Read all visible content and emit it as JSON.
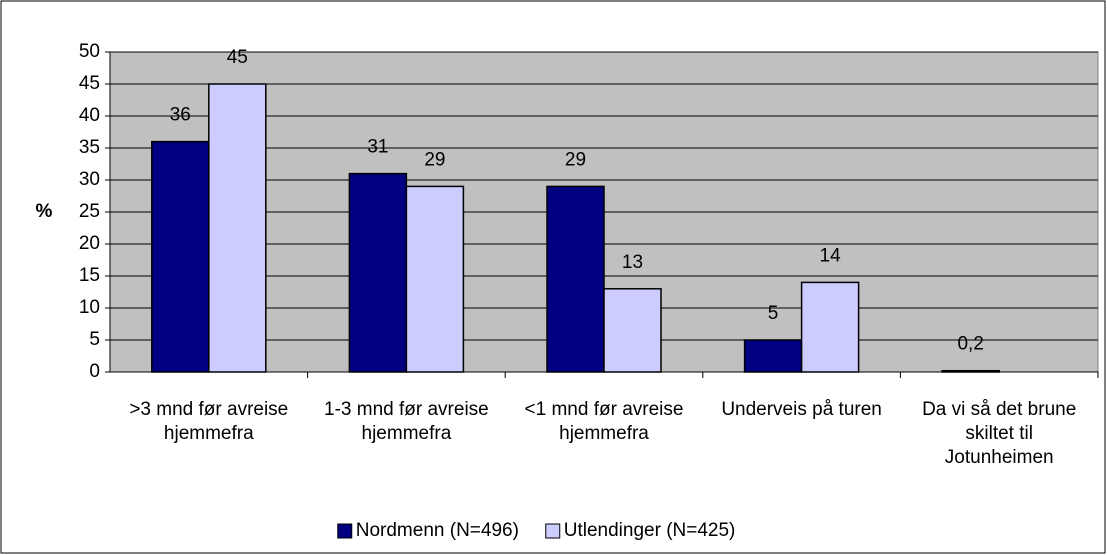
{
  "chart_data": {
    "type": "bar",
    "categories": [
      ">3 mnd før avreise hjemmefra",
      "1-3 mnd før avreise hjemmefra",
      "<1 mnd før avreise hjemmefra",
      "Underveis på turen",
      "Da vi så det brune skiltet til Jotunheimen"
    ],
    "series": [
      {
        "name": "Nordmenn (N=496)",
        "color": "#000080",
        "values": [
          36,
          31,
          29,
          5,
          0.2
        ],
        "value_labels": [
          "36",
          "31",
          "29",
          "5",
          "0,2"
        ]
      },
      {
        "name": "Utlendinger (N=425)",
        "color": "#ccccff",
        "values": [
          45,
          29,
          13,
          14,
          null
        ]
      }
    ],
    "y_label": "%",
    "ylim": [
      0,
      50
    ],
    "yticks": [
      0,
      5,
      10,
      15,
      20,
      25,
      30,
      35,
      40,
      45,
      50
    ],
    "grid": true,
    "legend": "bottom"
  }
}
